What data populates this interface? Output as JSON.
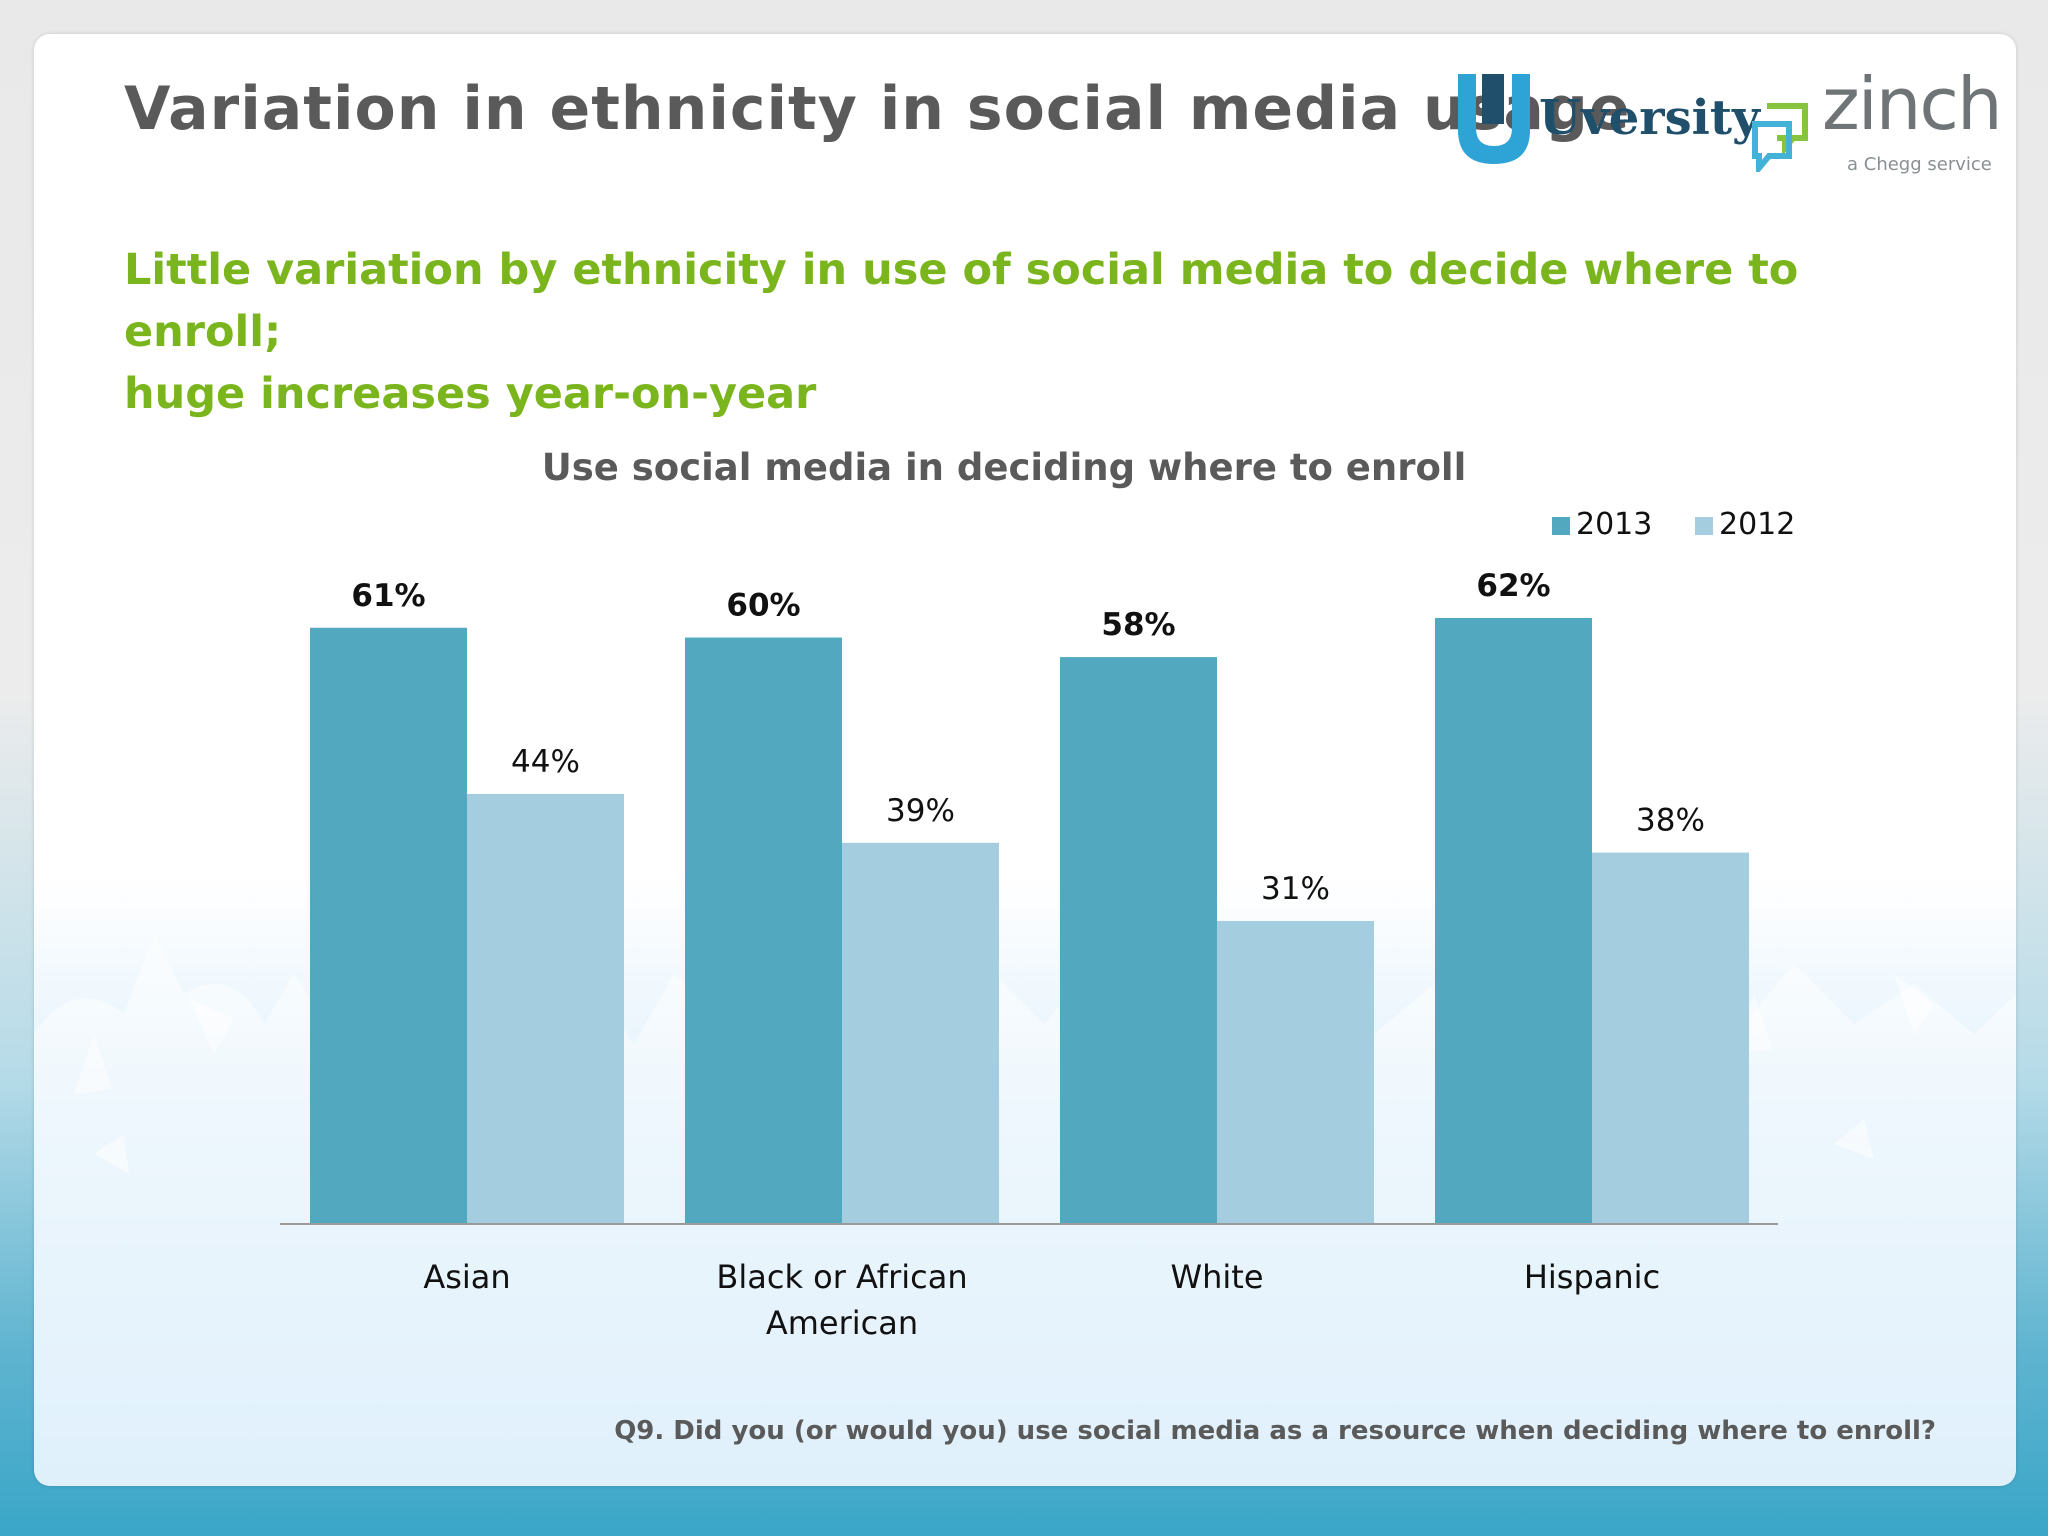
{
  "slide": {
    "title": "Variation in ethnicity in social media usage",
    "subtitle_lines": [
      "Little variation by ethnicity in use of social media to decide where to enroll;",
      "huge increases year-on-year"
    ],
    "footnote": "Q9. Did you (or would you) use social media as a resource when deciding where to enroll?"
  },
  "logos": {
    "uversity": "Uversity",
    "zinch": "zinch",
    "zinch_tag": "a Chegg service"
  },
  "colors": {
    "title": "#5a5a5a",
    "subtitle": "#7ab51d",
    "series_2013": "#52a8bf",
    "series_2012": "#a4cddf",
    "uversity": "#1f4f6a",
    "zinch_mark": "#42b3d7"
  },
  "chart_data": {
    "type": "bar",
    "title": "Use social media in deciding where to enroll",
    "categories": [
      "Asian",
      "Black or African American",
      "White",
      "Hispanic"
    ],
    "category_label_lines": [
      [
        "Asian"
      ],
      [
        "Black or African",
        "American"
      ],
      [
        "White"
      ],
      [
        "Hispanic"
      ]
    ],
    "series": [
      {
        "name": "2013",
        "values": [
          61,
          60,
          58,
          62
        ],
        "labels": [
          "61%",
          "60%",
          "58%",
          "62%"
        ],
        "label_bold": true,
        "color": "#52a8bf"
      },
      {
        "name": "2012",
        "values": [
          44,
          39,
          31,
          38
        ],
        "labels": [
          "44%",
          "39%",
          "31%",
          "38%"
        ],
        "label_bold": false,
        "color": "#a4cddf"
      }
    ],
    "xlabel": "",
    "ylabel": "",
    "ylim": [
      0,
      62
    ],
    "grid": false,
    "legend": "top-right"
  }
}
